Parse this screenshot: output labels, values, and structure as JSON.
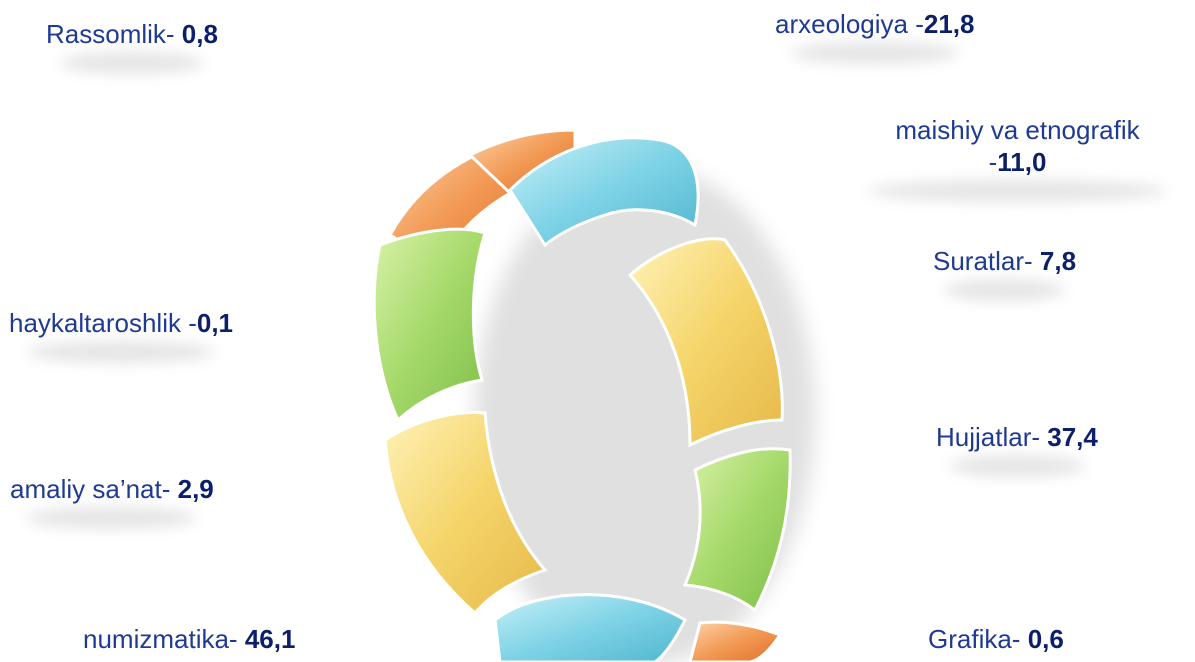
{
  "labels": {
    "rassomlik": {
      "name": "Rassomlik- ",
      "value": "0,8"
    },
    "arxeologiya": {
      "name": "arxeologiya -",
      "value": "21,8"
    },
    "maishiy": {
      "name": "maishiy va etnografik",
      "prefix": "-",
      "value": "11,0"
    },
    "suratlar": {
      "name": "Suratlar- ",
      "value": "7,8"
    },
    "haykaltarosh": {
      "name": "haykaltaroshlik -",
      "value": "0,1"
    },
    "hujjatlar": {
      "name": "Hujjatlar- ",
      "value": "37,4"
    },
    "amaliy": {
      "name": "amaliy sa’nat- ",
      "value": "2,9"
    },
    "numizmatika": {
      "name": "numizmatika- ",
      "value": "46,1"
    },
    "grafika": {
      "name": "Grafika- ",
      "value": "0,6"
    }
  },
  "colors": {
    "label_text": "#1f3a93",
    "value_text": "#0b1f6b",
    "segment_blue": "#7fd3e6",
    "segment_orange": "#f29a55",
    "segment_green": "#a5d96a",
    "segment_yellow": "#f5d56a"
  }
}
